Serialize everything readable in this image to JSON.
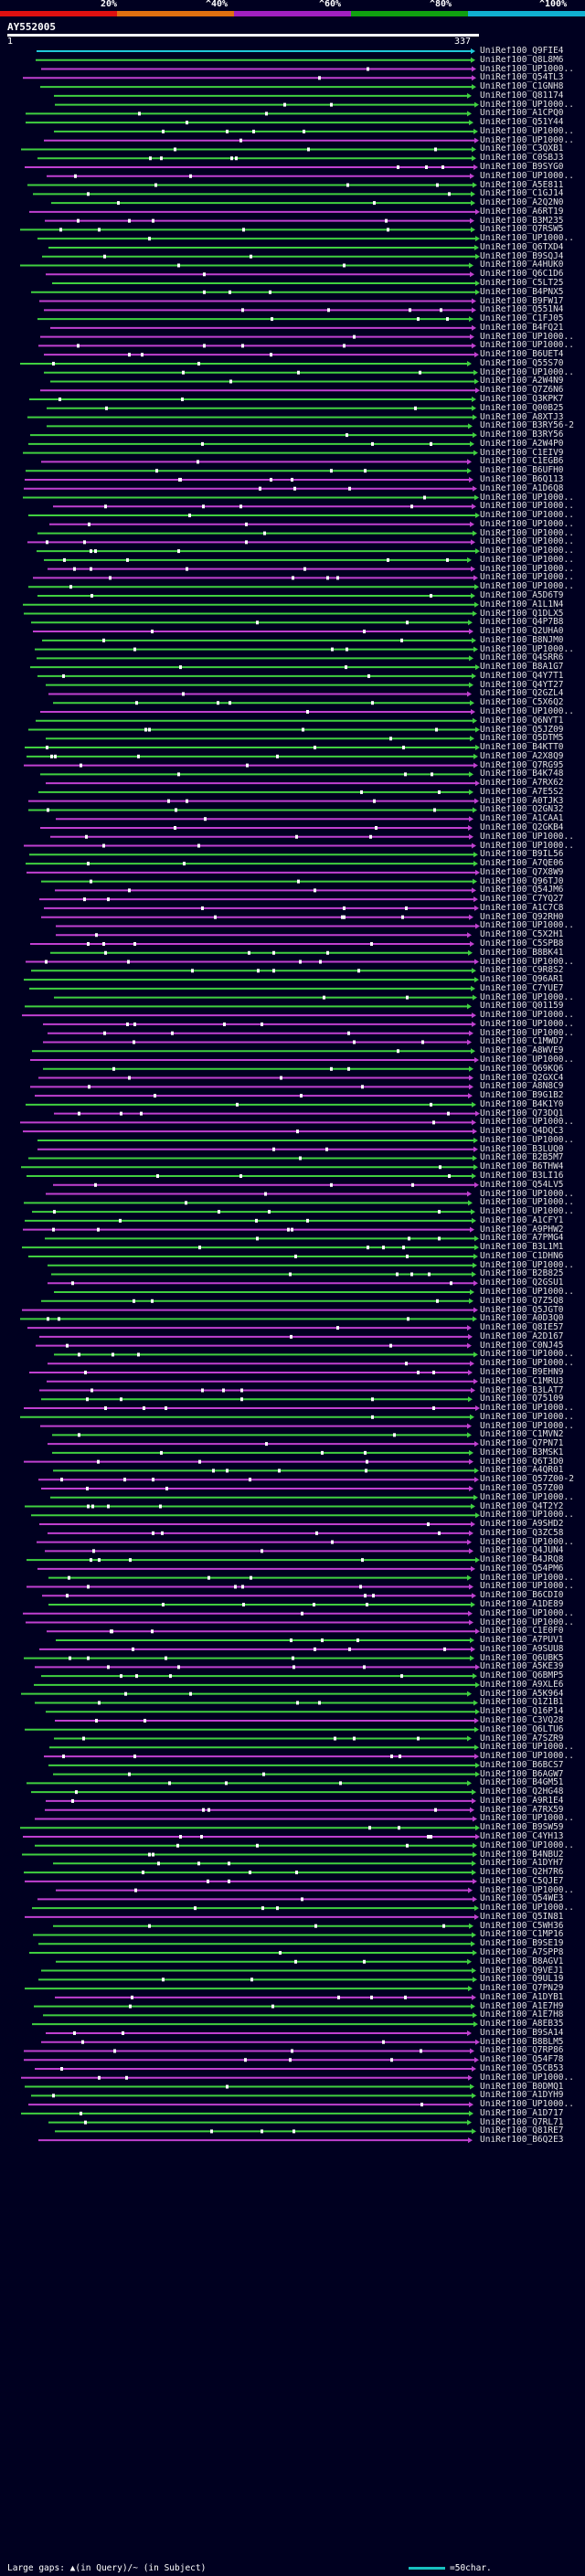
{
  "legend": {
    "labels": [
      "20%",
      "^40%",
      "^60%",
      "^80%",
      "^100%"
    ],
    "colors": [
      "#e01010",
      "#e07010",
      "#a020c0",
      "#10a010",
      "#10b0d0"
    ]
  },
  "query": {
    "id": "AY552005",
    "start": "1",
    "end": "337"
  },
  "hit_colors": {
    "green": "#40d040",
    "magenta": "#c040d0",
    "cyan": "#20c8d8"
  },
  "hits": [
    "UniRef100_Q9FIE4",
    "UniRef100_Q8L8M6",
    "UniRef100_UP1000..",
    "UniRef100_Q54TL3",
    "UniRef100_C1GNH8",
    "UniRef100_Q81174",
    "UniRef100_UP1000..",
    "UniRef100_A1CPQ0",
    "UniRef100_Q51Y44",
    "UniRef100_UP1000..",
    "UniRef100_UP1000..",
    "UniRef100_C3QXB1",
    "UniRef100_C0SBJ3",
    "UniRef100_B9SYG0",
    "UniRef100_UP1000..",
    "UniRef100_A5E811",
    "UniRef100_C1GJ14",
    "UniRef100_A2Q2N0",
    "UniRef100_A6RT19",
    "UniRef100_B3M235",
    "UniRef100_Q7RSW5",
    "UniRef100_UP1000..",
    "UniRef100_Q6TXD4",
    "UniRef100_B9SQJ4",
    "UniRef100_A4HUK0",
    "UniRef100_Q6C1D6",
    "UniRef100_C5LT25",
    "UniRef100_B4PNX5",
    "UniRef100_B9FW17",
    "UniRef100_Q551N4",
    "UniRef100_C1FJ05",
    "UniRef100_B4FQ21",
    "UniRef100_UP1000..",
    "UniRef100_UP1000..",
    "UniRef100_B6UET4",
    "UniRef100_Q55S70",
    "UniRef100_UP1000..",
    "UniRef100_A2W4N9",
    "UniRef100_Q7Z6N6",
    "UniRef100_Q3KPK7",
    "UniRef100_Q00B25",
    "UniRef100_A8XTJ3",
    "UniRef100_B3RY56-2",
    "UniRef100_B3RY56",
    "UniRef100_A2W4P0",
    "UniRef100_C1EIV9",
    "UniRef100_C1EGB6",
    "UniRef100_B6UFH0",
    "UniRef100_B6Q113",
    "UniRef100_A1D6Q8",
    "UniRef100_UP1000..",
    "UniRef100_UP1000..",
    "UniRef100_UP1000..",
    "UniRef100_UP1000..",
    "UniRef100_UP1000..",
    "UniRef100_UP1000..",
    "UniRef100_UP1000..",
    "UniRef100_UP1000..",
    "UniRef100_UP1000..",
    "UniRef100_UP1000..",
    "UniRef100_UP1000..",
    "UniRef100_A5D6T9",
    "UniRef100_A1L1N4",
    "UniRef100_Q1DLX5",
    "UniRef100_Q4P7B8",
    "UniRef100_Q2UHA0",
    "UniRef100_B8NJM0",
    "UniRef100_UP1000..",
    "UniRef100_Q4SRR6",
    "UniRef100_B8A1G7",
    "UniRef100_Q4Y7T1",
    "UniRef100_Q4YT27",
    "UniRef100_Q2GZL4",
    "UniRef100_C5X6Q2",
    "UniRef100_UP1000..",
    "UniRef100_Q6NYT1",
    "UniRef100_Q5JZ09",
    "UniRef100_Q5DTM5",
    "UniRef100_B4KTT0",
    "UniRef100_A2X8Q9",
    "UniRef100_Q7RG95",
    "UniRef100_B4K748",
    "UniRef100_A7RX62",
    "UniRef100_A7E5S2",
    "UniRef100_A0TJK3",
    "UniRef100_Q2GN32",
    "UniRef100_A1CAA1",
    "UniRef100_Q2GKB4",
    "UniRef100_UP1000..",
    "UniRef100_UP1000..",
    "UniRef100_B9IL56",
    "UniRef100_A7QE06",
    "UniRef100_Q7X8W9",
    "UniRef100_Q96TJ0",
    "UniRef100_Q54JM6",
    "UniRef100_C7YQ27",
    "UniRef100_A1C7C8",
    "UniRef100_Q92RH0",
    "UniRef100_UP1000..",
    "UniRef100_C5X2H1",
    "UniRef100_C5SPB8",
    "UniRef100_B8BK41",
    "UniRef100_UP1000..",
    "UniRef100_C9R8S2",
    "UniRef100_Q96AR1",
    "UniRef100_C7YUE7",
    "UniRef100_UP1000..",
    "UniRef100_Q01159",
    "UniRef100_UP1000..",
    "UniRef100_UP1000..",
    "UniRef100_UP1000..",
    "UniRef100_C1MWD7",
    "UniRef100_A8WVE9",
    "UniRef100_UP1000..",
    "UniRef100_Q69KQ6",
    "UniRef100_Q2GXC4",
    "UniRef100_A8N8C9",
    "UniRef100_B9G1B2",
    "UniRef100_B4K1Y0",
    "UniRef100_Q73DQ1",
    "UniRef100_UP1000..",
    "UniRef100_Q4DQC3",
    "UniRef100_UP1000..",
    "UniRef100_B3LUQ0",
    "UniRef100_B2B5M7",
    "UniRef100_B6THW4",
    "UniRef100_B3LI16",
    "UniRef100_Q54LV5",
    "UniRef100_UP1000..",
    "UniRef100_UP1000..",
    "UniRef100_UP1000..",
    "UniRef100_A1CFY1",
    "UniRef100_A9PHW2",
    "UniRef100_A7PMG4",
    "UniRef100_B3L1M1",
    "UniRef100_C1DHN6",
    "UniRef100_UP1000..",
    "UniRef100_B2B825",
    "UniRef100_Q2GSU1",
    "UniRef100_UP1000..",
    "UniRef100_Q7Z5Q8",
    "UniRef100_Q5JGT0",
    "UniRef100_A0D3Q0",
    "UniRef100_Q8IE57",
    "UniRef100_A2D167",
    "UniRef100_C0NJ45",
    "UniRef100_UP1000..",
    "UniRef100_UP1000..",
    "UniRef100_B9EHN9",
    "UniRef100_C1MRU3",
    "UniRef100_B3LAT7",
    "UniRef100_Q75109",
    "UniRef100_UP1000..",
    "UniRef100_UP1000..",
    "UniRef100_UP1000..",
    "UniRef100_C1MVN2",
    "UniRef100_Q7PN71",
    "UniRef100_B3MSK1",
    "UniRef100_Q6T3D0",
    "UniRef100_A4QR01",
    "UniRef100_Q57Z00-2",
    "UniRef100_Q57Z00",
    "UniRef100_UP1000..",
    "UniRef100_Q4T2Y2",
    "UniRef100_UP1000..",
    "UniRef100_A9SHD2",
    "UniRef100_Q3ZC58",
    "UniRef100_UP1000..",
    "UniRef100_Q4JUN4",
    "UniRef100_B4JRQ8",
    "UniRef100_Q54PM6",
    "UniRef100_UP1000..",
    "UniRef100_UP1000..",
    "UniRef100_B6CDI0",
    "UniRef100_A1DE89",
    "UniRef100_UP1000..",
    "UniRef100_UP1000..",
    "UniRef100_C1E0F0",
    "UniRef100_A7PUV1",
    "UniRef100_A9SUU8",
    "UniRef100_Q6UBK5",
    "UniRef100_A5KE39",
    "UniRef100_Q6BMP5",
    "UniRef100_A9XLE6",
    "UniRef100_A5K964",
    "UniRef100_Q1Z1B1",
    "UniRef100_Q16P14",
    "UniRef100_C3VQ28",
    "UniRef100_Q6LTU6",
    "UniRef100_A7SZR9",
    "UniRef100_UP1000..",
    "UniRef100_UP1000..",
    "UniRef100_B6BCS7",
    "UniRef100_B6AGW7",
    "UniRef100_B4GM51",
    "UniRef100_Q2HG48",
    "UniRef100_A9R1E4",
    "UniRef100_A7RX59",
    "UniRef100_UP1000..",
    "UniRef100_B9SW59",
    "UniRef100_C4YH13",
    "UniRef100_UP1000..",
    "UniRef100_B4NBU2",
    "UniRef100_A1DYH7",
    "UniRef100_Q2H7R6",
    "UniRef100_C5QJE7",
    "UniRef100_UP1000..",
    "UniRef100_Q54WE3",
    "UniRef100_UP1000..",
    "UniRef100_Q5IN81",
    "UniRef100_C5WH36",
    "UniRef100_C1MP16",
    "UniRef100_B9SE19",
    "UniRef100_A7SPP8",
    "UniRef100_B8AGV1",
    "UniRef100_Q9VEJ1",
    "UniRef100_Q9UL19",
    "UniRef100_Q7PN29",
    "UniRef100_A1DYB1",
    "UniRef100_A1E7H9",
    "UniRef100_A1E7H8",
    "UniRef100_A8EB35",
    "UniRef100_B9SA14",
    "UniRef100_B8BLM5",
    "UniRef100_Q7RP86",
    "UniRef100_Q54F78",
    "UniRef100_Q5CB53",
    "UniRef100_UP1000..",
    "UniRef100_B0DMQ1",
    "UniRef100_A1DYH9",
    "UniRef100_UP1000..",
    "UniRef100_A1D717",
    "UniRef100_Q7RL71",
    "UniRef100_Q81RE7",
    "UniRef100_B6Q2E3"
  ],
  "footer": {
    "large_gaps": "Large gaps: ▲(in Query)/~ (in Subject)",
    "scale_label": "=50char."
  }
}
